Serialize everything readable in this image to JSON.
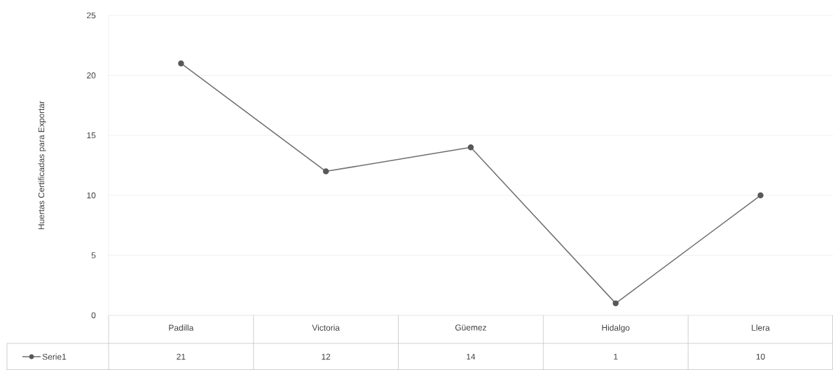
{
  "chart_data": {
    "type": "line",
    "ylabel": "Huertas Certificadas para Exportar",
    "categories": [
      "Padilla",
      "Victoria",
      "Güemez",
      "Hidalgo",
      "Llera"
    ],
    "series": [
      {
        "name": "Serie1",
        "color": "#6e6e6e",
        "values": [
          21,
          12,
          14,
          1,
          10
        ]
      }
    ],
    "ylim": [
      0,
      25
    ],
    "yticks": [
      0,
      5,
      10,
      15,
      20,
      25
    ],
    "grid": "y",
    "legend": "bottom",
    "marker": "circle",
    "line_style": "solid",
    "data_labels": true
  }
}
